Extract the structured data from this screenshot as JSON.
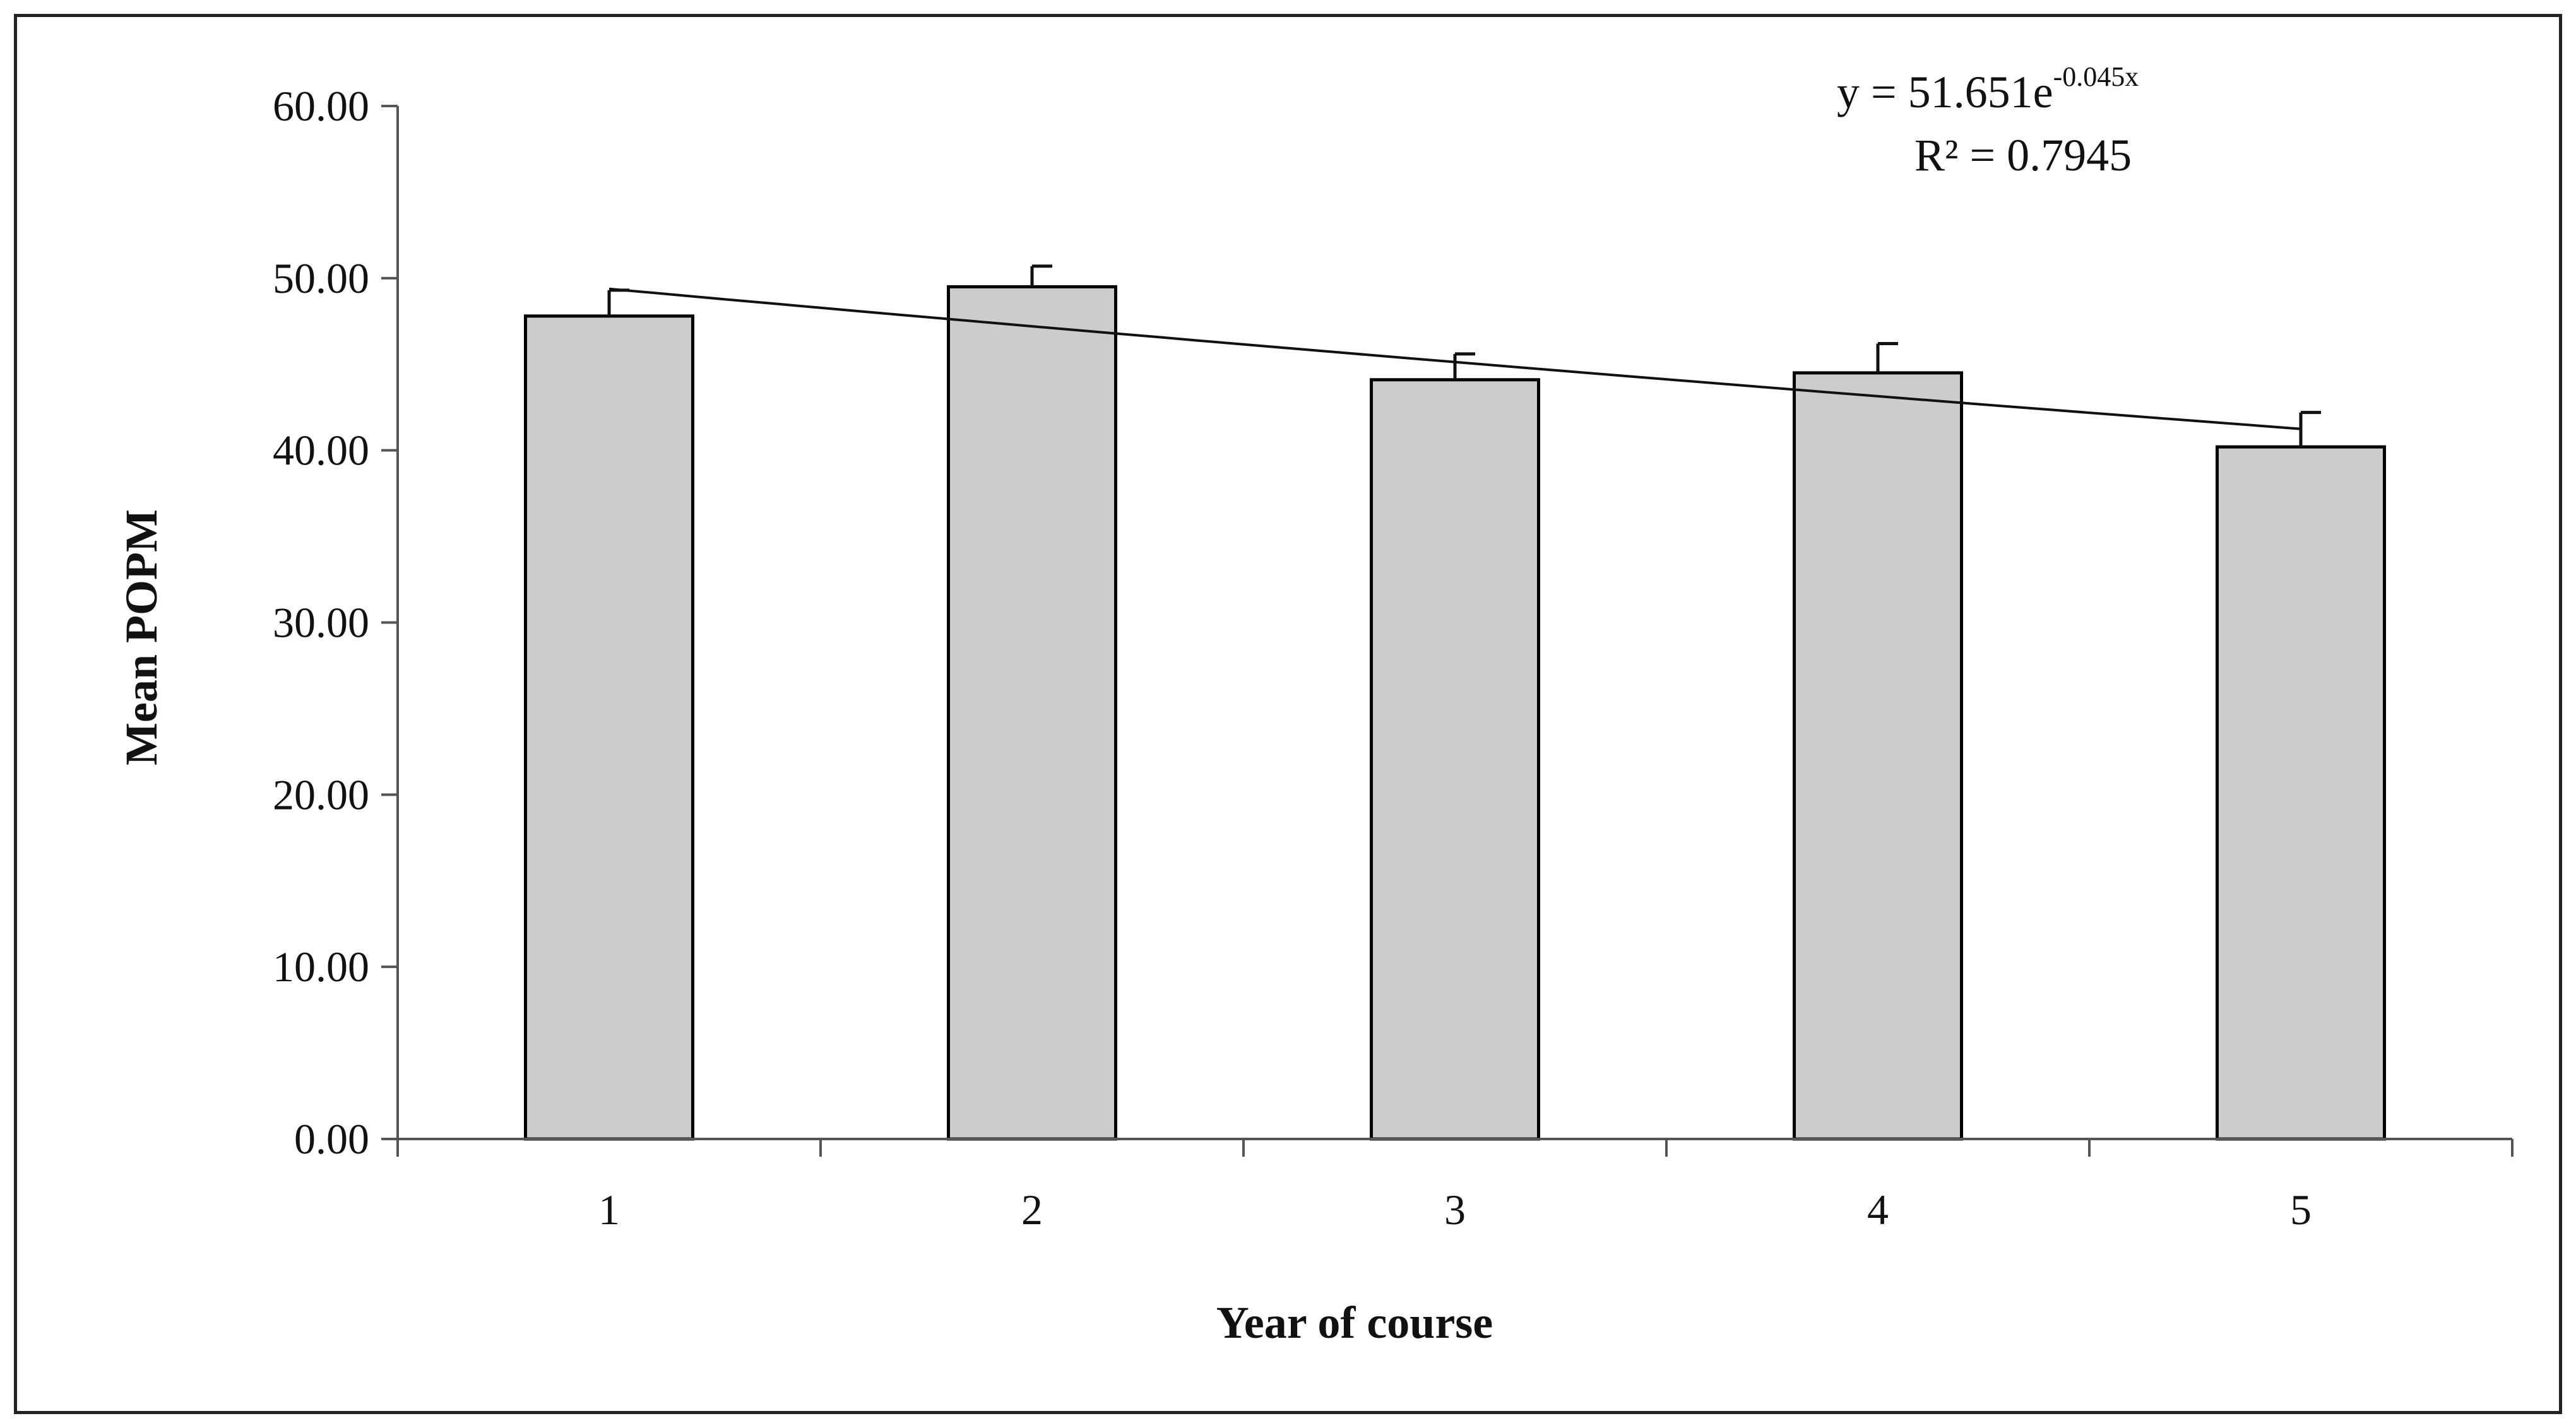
{
  "chart_data": {
    "type": "bar",
    "categories": [
      "1",
      "2",
      "3",
      "4",
      "5"
    ],
    "values": [
      47.8,
      49.5,
      44.1,
      44.5,
      40.2
    ],
    "error_bars": [
      1.5,
      1.2,
      1.5,
      1.7,
      2.0
    ],
    "xlabel": "Year of course",
    "ylabel": "Mean POPM",
    "ylim": [
      0,
      60
    ],
    "yticks": [
      "0.00",
      "10.00",
      "20.00",
      "30.00",
      "40.00",
      "50.00",
      "60.00"
    ],
    "bar_color": "#cccccc",
    "bar_edge_color": "#000000",
    "grid": false,
    "trendline": {
      "type": "exponential",
      "a": 51.651,
      "b": -0.045,
      "equation_main": "y = 51.651e",
      "equation_exponent": "-0.045x",
      "r_squared": "R² = 0.7945"
    }
  }
}
